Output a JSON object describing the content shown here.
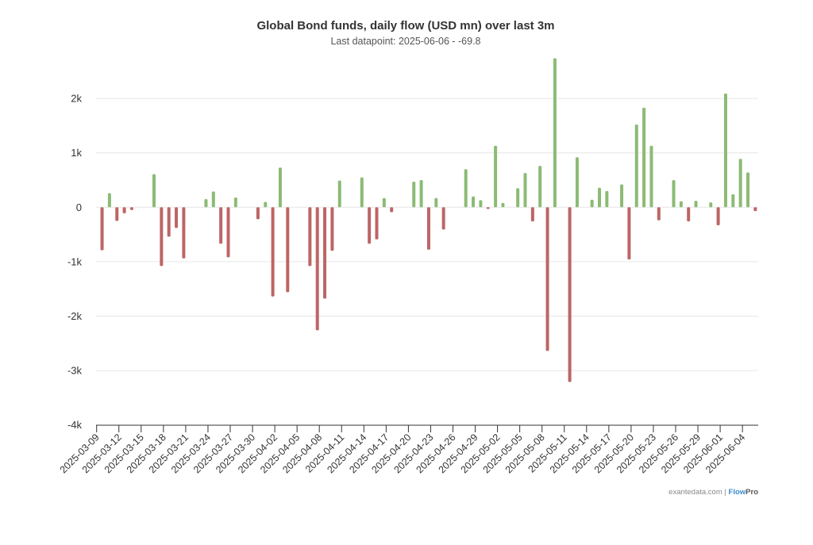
{
  "chart_data": {
    "type": "bar",
    "title": "Global Bond funds, daily flow (USD mn) over last 3m",
    "subtitle": "Last datapoint: 2025-06-06 - -69.8",
    "xlabel": "",
    "ylabel": "",
    "ylim": [
      -4000,
      2900
    ],
    "grid": true,
    "y_ticks": [
      {
        "value": 2000,
        "label": "2k"
      },
      {
        "value": 1000,
        "label": "1k"
      },
      {
        "value": 0,
        "label": "0"
      },
      {
        "value": -1000,
        "label": "-1k"
      },
      {
        "value": -2000,
        "label": "-2k"
      },
      {
        "value": -3000,
        "label": "-3k"
      },
      {
        "value": -4000,
        "label": "-4k"
      }
    ],
    "x_ticks": [
      "2025-03-09",
      "2025-03-12",
      "2025-03-15",
      "2025-03-18",
      "2025-03-21",
      "2025-03-24",
      "2025-03-27",
      "2025-03-30",
      "2025-04-02",
      "2025-04-05",
      "2025-04-08",
      "2025-04-11",
      "2025-04-14",
      "2025-04-17",
      "2025-04-20",
      "2025-04-23",
      "2025-04-26",
      "2025-04-29",
      "2025-05-02",
      "2025-05-05",
      "2025-05-08",
      "2025-05-11",
      "2025-05-14",
      "2025-05-17",
      "2025-05-20",
      "2025-05-23",
      "2025-05-26",
      "2025-05-29",
      "2025-06-01",
      "2025-06-04"
    ],
    "x_start": "2025-03-09",
    "colors": {
      "positive": "#8bbb74",
      "negative": "#bd6565"
    },
    "series": [
      {
        "name": "Daily flow (USD mn)",
        "points": [
          [
            "2025-03-10",
            -790
          ],
          [
            "2025-03-11",
            260
          ],
          [
            "2025-03-12",
            -250
          ],
          [
            "2025-03-13",
            -110
          ],
          [
            "2025-03-14",
            -50
          ],
          [
            "2025-03-17",
            610
          ],
          [
            "2025-03-18",
            -1080
          ],
          [
            "2025-03-19",
            -540
          ],
          [
            "2025-03-20",
            -380
          ],
          [
            "2025-03-21",
            -940
          ],
          [
            "2025-03-24",
            150
          ],
          [
            "2025-03-25",
            290
          ],
          [
            "2025-03-26",
            -670
          ],
          [
            "2025-03-27",
            -920
          ],
          [
            "2025-03-28",
            180
          ],
          [
            "2025-03-31",
            -220
          ],
          [
            "2025-04-01",
            100
          ],
          [
            "2025-04-02",
            -1640
          ],
          [
            "2025-04-03",
            730
          ],
          [
            "2025-04-04",
            -1560
          ],
          [
            "2025-04-07",
            -1080
          ],
          [
            "2025-04-08",
            -2260
          ],
          [
            "2025-04-09",
            -1680
          ],
          [
            "2025-04-10",
            -800
          ],
          [
            "2025-04-11",
            490
          ],
          [
            "2025-04-14",
            550
          ],
          [
            "2025-04-15",
            -670
          ],
          [
            "2025-04-16",
            -590
          ],
          [
            "2025-04-17",
            170
          ],
          [
            "2025-04-18",
            -90
          ],
          [
            "2025-04-21",
            470
          ],
          [
            "2025-04-22",
            500
          ],
          [
            "2025-04-23",
            -780
          ],
          [
            "2025-04-24",
            170
          ],
          [
            "2025-04-25",
            -410
          ],
          [
            "2025-04-28",
            700
          ],
          [
            "2025-04-29",
            200
          ],
          [
            "2025-04-30",
            130
          ],
          [
            "2025-05-01",
            -30
          ],
          [
            "2025-05-02",
            1130
          ],
          [
            "2025-05-03",
            80
          ],
          [
            "2025-05-05",
            350
          ],
          [
            "2025-05-06",
            630
          ],
          [
            "2025-05-07",
            -260
          ],
          [
            "2025-05-08",
            760
          ],
          [
            "2025-05-09",
            -2640
          ],
          [
            "2025-05-10",
            2740
          ],
          [
            "2025-05-12",
            -3210
          ],
          [
            "2025-05-13",
            920
          ],
          [
            "2025-05-15",
            140
          ],
          [
            "2025-05-16",
            360
          ],
          [
            "2025-05-17",
            300
          ],
          [
            "2025-05-19",
            420
          ],
          [
            "2025-05-20",
            -960
          ],
          [
            "2025-05-21",
            1520
          ],
          [
            "2025-05-22",
            1830
          ],
          [
            "2025-05-23",
            1130
          ],
          [
            "2025-05-24",
            -240
          ],
          [
            "2025-05-26",
            500
          ],
          [
            "2025-05-27",
            110
          ],
          [
            "2025-05-28",
            -260
          ],
          [
            "2025-05-29",
            120
          ],
          [
            "2025-05-31",
            90
          ],
          [
            "2025-06-01",
            -330
          ],
          [
            "2025-06-02",
            2090
          ],
          [
            "2025-06-03",
            240
          ],
          [
            "2025-06-04",
            890
          ],
          [
            "2025-06-05",
            640
          ],
          [
            "2025-06-06",
            -69.8
          ]
        ]
      }
    ]
  },
  "credits": {
    "site": "exantedata.com",
    "separator": " | ",
    "brand_a": "Flow",
    "brand_b": "Pro",
    "brand_color": "#3a8ccf"
  }
}
